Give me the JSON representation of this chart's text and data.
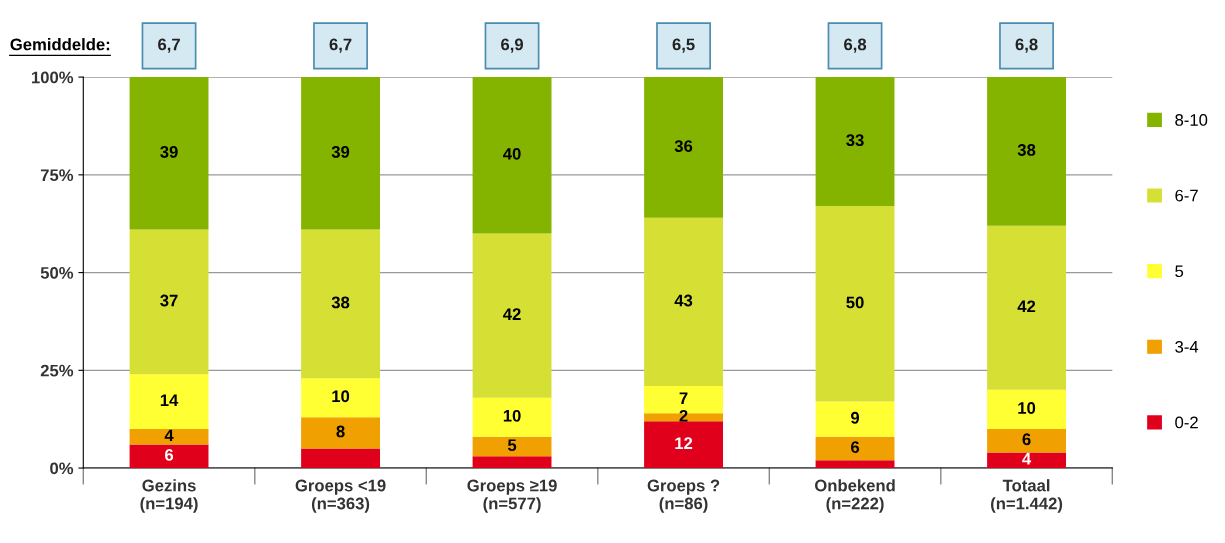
{
  "chart_data": {
    "type": "bar",
    "stacked": true,
    "categories": [
      "Gezins\n(n=194)",
      "Groeps <19\n(n=363)",
      "Groeps ≥19\n(n=577)",
      "Groeps ?\n(n=86)",
      "Onbekend\n(n=222)",
      "Totaal\n(n=1.442)"
    ],
    "series": [
      {
        "name": "0-2",
        "color": "#e0001c",
        "values": [
          6,
          5,
          3,
          12,
          2,
          4
        ],
        "value_labels": [
          "6",
          null,
          null,
          "12",
          null,
          "4"
        ]
      },
      {
        "name": "3-4",
        "color": "#f0a000",
        "values": [
          4,
          8,
          5,
          2,
          6,
          6
        ],
        "value_labels": [
          "4",
          "8",
          "5",
          "2",
          "6",
          "6"
        ]
      },
      {
        "name": "5",
        "color": "#ffff33",
        "values": [
          14,
          10,
          10,
          7,
          9,
          10
        ],
        "value_labels": [
          "14",
          "10",
          "10",
          "7",
          "9",
          "10"
        ]
      },
      {
        "name": "6-7",
        "color": "#d6e034",
        "values": [
          37,
          38,
          42,
          43,
          50,
          42
        ],
        "value_labels": [
          "37",
          "38",
          "42",
          "43",
          "50",
          "42"
        ]
      },
      {
        "name": "8-10",
        "color": "#84b400",
        "values": [
          39,
          39,
          40,
          36,
          33,
          38
        ],
        "value_labels": [
          "39",
          "39",
          "40",
          "36",
          "33",
          "38"
        ]
      }
    ],
    "ylim": [
      0,
      100
    ],
    "yticks": [
      {
        "value": 0,
        "label": "0%"
      },
      {
        "value": 25,
        "label": "25%"
      },
      {
        "value": 50,
        "label": "50%"
      },
      {
        "value": 75,
        "label": "75%"
      },
      {
        "value": 100,
        "label": "100%"
      }
    ],
    "grid": "y",
    "legend": "right",
    "annotations": [
      "Gemiddelde:",
      "6,7",
      "6,7",
      "6,9",
      "6,5",
      "6,8",
      "6,8"
    ]
  }
}
